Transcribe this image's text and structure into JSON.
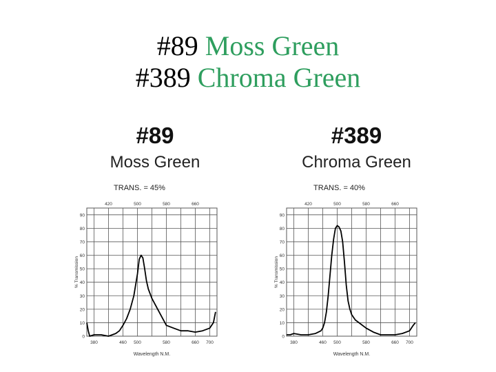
{
  "title": {
    "line1": {
      "number": "#89",
      "name": "Moss Green"
    },
    "line2": {
      "number": "#389",
      "name": "Chroma Green"
    }
  },
  "colors": {
    "title_accent": "#2e9e5e",
    "text": "#000000",
    "grid": "#555555"
  },
  "chart_data": [
    {
      "type": "line",
      "title": "#89",
      "subtitle": "Moss Green",
      "annotation": "TRANS. = 45%",
      "xlabel": "Wavelength N.M.",
      "ylabel": "% Transmission",
      "xlim": [
        360,
        720
      ],
      "ylim": [
        0,
        95
      ],
      "top_ticks": [
        "420",
        "500",
        "580",
        "660"
      ],
      "bottom_ticks": [
        "380",
        "460",
        "500",
        "580",
        "660",
        "700"
      ],
      "y_ticks": [
        "0",
        "10",
        "20",
        "30",
        "40",
        "50",
        "60",
        "70",
        "80",
        "90"
      ],
      "grid": true,
      "series": [
        {
          "x": [
            360,
            364,
            368,
            380,
            400,
            420,
            440,
            450,
            460,
            470,
            480,
            490,
            500,
            505,
            510,
            515,
            520,
            525,
            530,
            540,
            560,
            580,
            600,
            620,
            640,
            660,
            680,
            700,
            710,
            716
          ],
          "y": [
            10,
            4,
            0,
            1,
            1,
            0,
            2,
            4,
            8,
            13,
            20,
            30,
            46,
            57,
            60,
            58,
            50,
            41,
            35,
            28,
            18,
            8,
            6,
            4,
            4,
            3,
            4,
            6,
            10,
            18
          ]
        }
      ]
    },
    {
      "type": "line",
      "title": "#389",
      "subtitle": "Chroma Green",
      "annotation": "TRANS. = 40%",
      "xlabel": "Wavelength N.M.",
      "ylabel": "% Transmission",
      "xlim": [
        360,
        720
      ],
      "ylim": [
        0,
        95
      ],
      "top_ticks": [
        "420",
        "500",
        "580",
        "660"
      ],
      "bottom_ticks": [
        "380",
        "460",
        "500",
        "580",
        "660",
        "700"
      ],
      "y_ticks": [
        "0",
        "10",
        "20",
        "30",
        "40",
        "50",
        "60",
        "70",
        "80",
        "90"
      ],
      "grid": true,
      "series": [
        {
          "x": [
            360,
            370,
            380,
            400,
            420,
            440,
            455,
            460,
            465,
            470,
            475,
            480,
            485,
            490,
            495,
            500,
            505,
            510,
            515,
            520,
            525,
            530,
            535,
            540,
            550,
            560,
            580,
            600,
            620,
            640,
            660,
            680,
            700,
            710,
            716
          ],
          "y": [
            1,
            1,
            2,
            1,
            1,
            2,
            4,
            6,
            10,
            18,
            30,
            45,
            60,
            72,
            80,
            82,
            81,
            78,
            70,
            55,
            38,
            26,
            20,
            16,
            12,
            10,
            6,
            3,
            1,
            1,
            1,
            2,
            4,
            8,
            10
          ]
        }
      ]
    }
  ]
}
